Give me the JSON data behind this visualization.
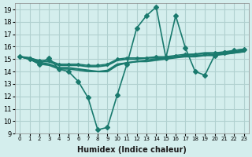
{
  "xlabel": "Humidex (Indice chaleur)",
  "ylabel": "",
  "background_color": "#d4eeed",
  "grid_color": "#b0d0cf",
  "line_color": "#1a7a6e",
  "xlim": [
    -0.5,
    23.5
  ],
  "ylim": [
    9,
    19.5
  ],
  "yticks": [
    9,
    10,
    11,
    12,
    13,
    14,
    15,
    16,
    17,
    18,
    19
  ],
  "xticks": [
    0,
    1,
    2,
    3,
    4,
    5,
    6,
    7,
    8,
    9,
    10,
    11,
    12,
    13,
    14,
    15,
    16,
    17,
    18,
    19,
    20,
    21,
    22,
    23
  ],
  "lines": [
    {
      "x": [
        0,
        1,
        2,
        3,
        4,
        5,
        6,
        7,
        8,
        9,
        10,
        11,
        12,
        13,
        14,
        15,
        16,
        17,
        18,
        19,
        20,
        21,
        22,
        23
      ],
      "y": [
        15.2,
        15.0,
        14.6,
        15.1,
        14.2,
        14.0,
        13.2,
        11.9,
        9.3,
        9.5,
        12.1,
        14.6,
        17.5,
        18.5,
        19.2,
        15.1,
        18.5,
        15.9,
        14.0,
        13.7,
        15.3,
        15.5,
        15.7,
        15.8
      ],
      "marker": "D",
      "markersize": 3,
      "linewidth": 1.2
    },
    {
      "x": [
        0,
        1,
        2,
        3,
        4,
        5,
        6,
        7,
        8,
        9,
        10,
        11,
        12,
        13,
        14,
        15,
        16,
        17,
        18,
        19,
        20,
        21,
        22,
        23
      ],
      "y": [
        15.2,
        15.0,
        14.7,
        14.6,
        14.3,
        14.3,
        14.2,
        14.1,
        14.0,
        14.0,
        14.5,
        14.7,
        14.8,
        14.9,
        15.0,
        15.1,
        15.2,
        15.3,
        15.4,
        15.5,
        15.5,
        15.5,
        15.6,
        15.7
      ],
      "marker": null,
      "markersize": 0,
      "linewidth": 1.5
    },
    {
      "x": [
        0,
        1,
        2,
        3,
        4,
        5,
        6,
        7,
        8,
        9,
        10,
        11,
        12,
        13,
        14,
        15,
        16,
        17,
        18,
        19,
        20,
        21,
        22,
        23
      ],
      "y": [
        15.2,
        15.1,
        14.8,
        14.8,
        14.5,
        14.5,
        14.5,
        14.4,
        14.4,
        14.5,
        14.9,
        15.0,
        15.0,
        15.1,
        15.1,
        15.1,
        15.2,
        15.2,
        15.2,
        15.3,
        15.3,
        15.4,
        15.5,
        15.6
      ],
      "marker": null,
      "markersize": 0,
      "linewidth": 1.5
    },
    {
      "x": [
        0,
        1,
        2,
        3,
        4,
        5,
        6,
        7,
        8,
        9,
        10,
        11,
        12,
        13,
        14,
        15,
        16,
        17,
        18,
        19,
        20,
        21,
        22,
        23
      ],
      "y": [
        15.2,
        15.1,
        14.9,
        14.9,
        14.6,
        14.6,
        14.6,
        14.5,
        14.5,
        14.6,
        15.0,
        15.1,
        15.1,
        15.1,
        15.2,
        15.2,
        15.3,
        15.4,
        15.4,
        15.4,
        15.5,
        15.6,
        15.7,
        15.8
      ],
      "marker": "D",
      "markersize": 2,
      "linewidth": 1.0
    },
    {
      "x": [
        0,
        1,
        2,
        3,
        4,
        5,
        6,
        7,
        8,
        9,
        10,
        11,
        12,
        13,
        14,
        15,
        16,
        17,
        18,
        19,
        20,
        21,
        22,
        23
      ],
      "y": [
        15.2,
        15.0,
        14.6,
        14.5,
        14.2,
        14.2,
        14.1,
        14.0,
        14.0,
        14.1,
        14.6,
        14.7,
        14.8,
        14.8,
        14.9,
        15.0,
        15.1,
        15.2,
        15.3,
        15.3,
        15.4,
        15.4,
        15.5,
        15.6
      ],
      "marker": null,
      "markersize": 0,
      "linewidth": 1.2
    }
  ]
}
